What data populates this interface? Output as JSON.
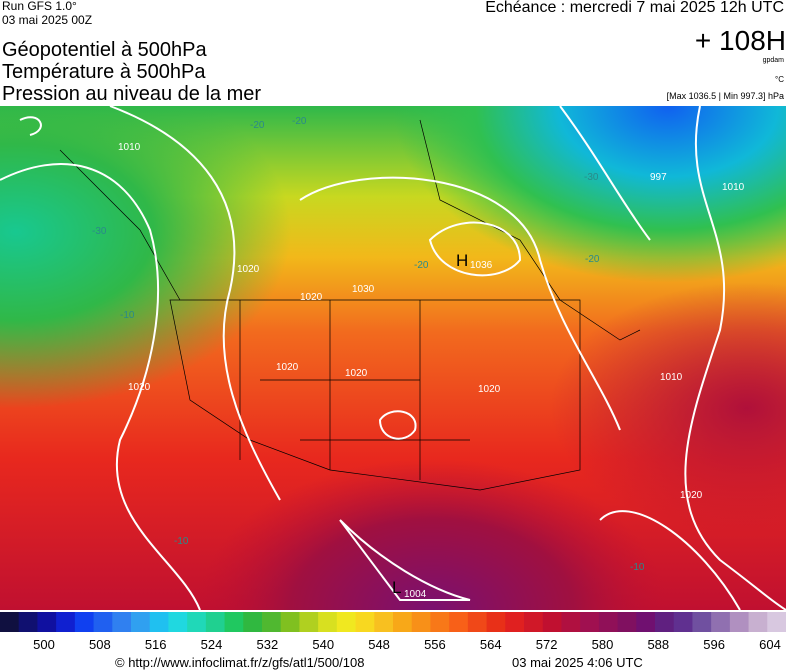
{
  "header": {
    "run": "Run GFS 1.0°",
    "run_date": "03 mai 2025 00Z",
    "titles": [
      "Géopotentiel à 500hPa",
      "Température à 500hPa",
      "Pression au niveau de la mer"
    ],
    "valid": "Echéance : mercredi 7 mai 2025 12h UTC",
    "lead": "+ 108H",
    "unit_geo": "gpdam",
    "unit_temp": "°C",
    "pressure_range": "[Max 1036.5 | Min 997.3] hPa"
  },
  "map_labels": {
    "high": "H",
    "high_value": "1036",
    "low": "L",
    "low_value": "1004",
    "contours": [
      "1010",
      "1020",
      "1030",
      "1020",
      "1020",
      "1020",
      "1020",
      "1020",
      "1020",
      "1010",
      "1010",
      "997",
      "-20",
      "-20",
      "-20",
      "-20",
      "-30",
      "-30",
      "-10",
      "-10",
      "-10"
    ]
  },
  "colorbar": {
    "labels": [
      "500",
      "508",
      "516",
      "524",
      "532",
      "540",
      "548",
      "556",
      "564",
      "572",
      "580",
      "588",
      "596",
      "604"
    ]
  },
  "footer": {
    "source": "© http://www.infoclimat.fr/z/gfs/atl1/500/108",
    "generated": "03 mai 2025  4:06 UTC"
  }
}
